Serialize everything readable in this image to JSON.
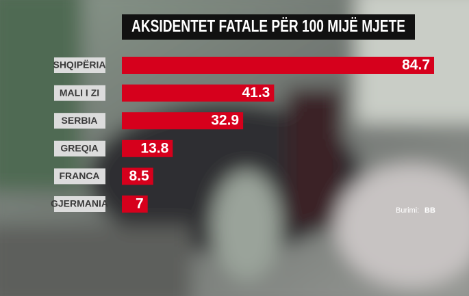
{
  "chart_data": {
    "type": "bar",
    "orientation": "horizontal",
    "title": "AKSIDENTET FATALE PËR 100 MIJË MJETE",
    "categories": [
      "SHQIPËRIA",
      "MALI I ZI",
      "SERBIA",
      "GREQIA",
      "FRANCA",
      "GJERMANIA"
    ],
    "values": [
      84.7,
      41.3,
      32.9,
      13.8,
      8.5,
      7
    ],
    "color": "#d6001c",
    "source": {
      "label": "Burimi:",
      "name": "BB"
    }
  }
}
